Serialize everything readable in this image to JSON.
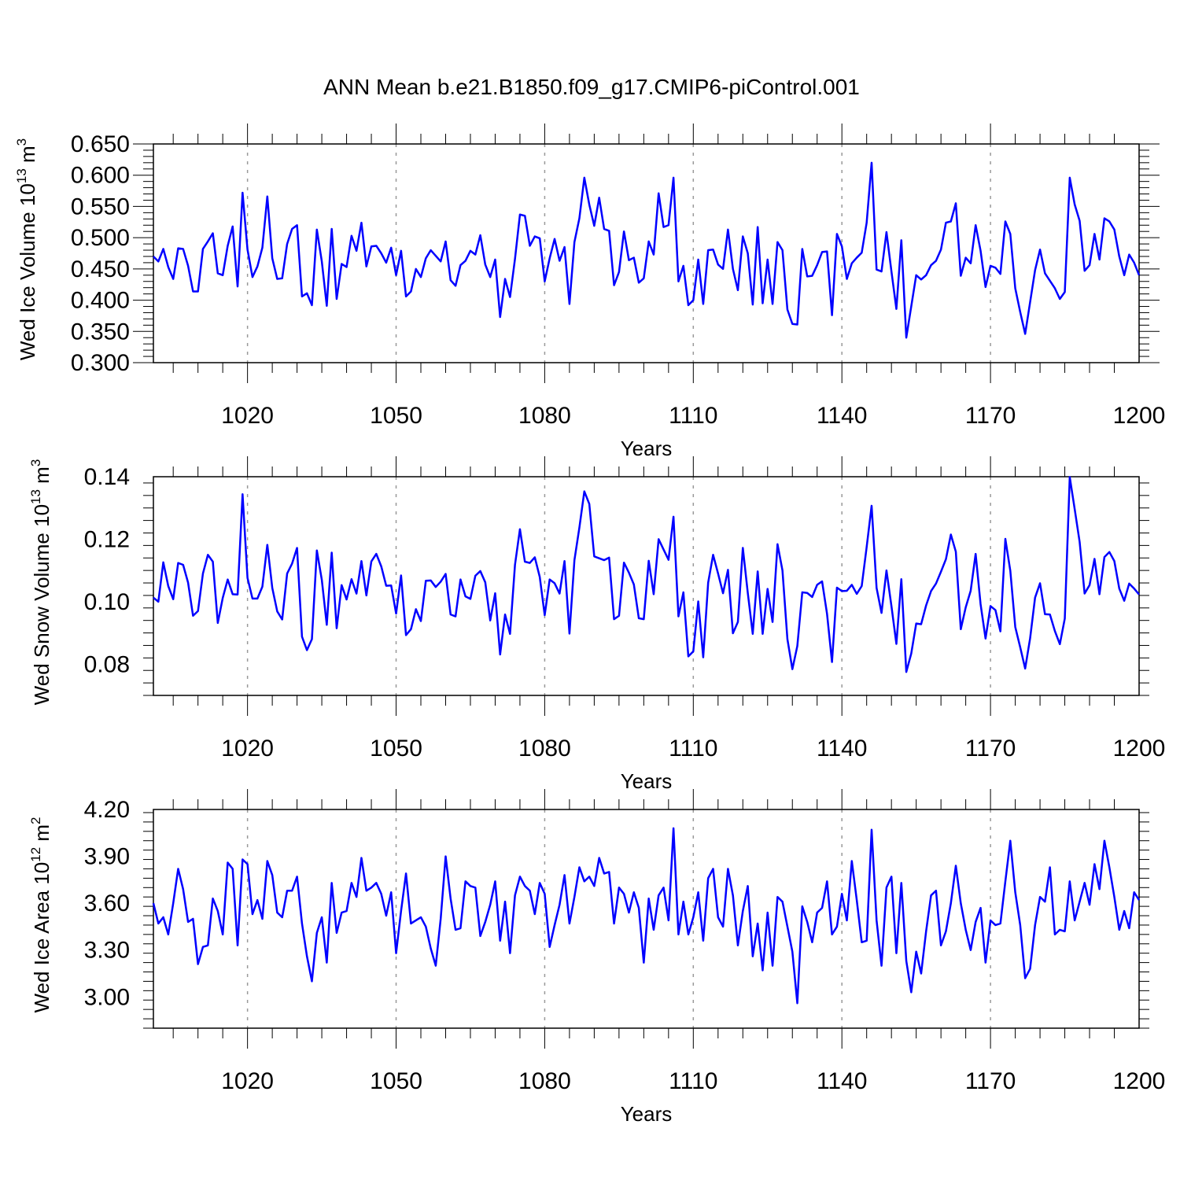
{
  "title": "ANN Mean b.e21.B1850.f09_g17.CMIP6-piControl.001",
  "colors": {
    "line": "#0000ff",
    "axis": "#000000",
    "grid": "#999999"
  },
  "chart_data": [
    {
      "type": "line",
      "name": "ice-volume",
      "ylabel_main": "Wed Ice Volume 10",
      "ylabel_exp": "13",
      "ylabel_unit": " m",
      "ylabel_unit_exp": "3",
      "xlabel": "Years",
      "xlim": [
        1001,
        1200
      ],
      "ylim": [
        0.3,
        0.65
      ],
      "yticks": [
        0.3,
        0.35,
        0.4,
        0.45,
        0.5,
        0.55,
        0.6,
        0.65
      ],
      "ytick_labels": [
        "0.300",
        "0.350",
        "0.400",
        "0.450",
        "0.500",
        "0.550",
        "0.600",
        "0.650"
      ],
      "xticks": [
        1020,
        1050,
        1080,
        1110,
        1140,
        1170,
        1200
      ],
      "xtick_labels": [
        "1020",
        "1050",
        "1080",
        "1110",
        "1140",
        "1170",
        "1200"
      ],
      "gridlines_x": [
        1020,
        1050,
        1080,
        1110,
        1140,
        1170
      ],
      "x_start": 1001,
      "series": [
        {
          "name": "Wed Ice Volume",
          "values": [
            0.47,
            0.462,
            0.482,
            0.453,
            0.434,
            0.483,
            0.482,
            0.455,
            0.414,
            0.414,
            0.482,
            0.494,
            0.507,
            0.443,
            0.44,
            0.487,
            0.518,
            0.422,
            0.572,
            0.481,
            0.437,
            0.454,
            0.484,
            0.566,
            0.467,
            0.434,
            0.435,
            0.49,
            0.514,
            0.52,
            0.406,
            0.411,
            0.392,
            0.513,
            0.462,
            0.391,
            0.514,
            0.402,
            0.458,
            0.453,
            0.503,
            0.479,
            0.524,
            0.454,
            0.486,
            0.487,
            0.475,
            0.46,
            0.484,
            0.44,
            0.479,
            0.406,
            0.414,
            0.45,
            0.437,
            0.467,
            0.48,
            0.471,
            0.462,
            0.494,
            0.432,
            0.423,
            0.456,
            0.463,
            0.479,
            0.473,
            0.504,
            0.457,
            0.437,
            0.465,
            0.373,
            0.434,
            0.405,
            0.466,
            0.537,
            0.535,
            0.487,
            0.502,
            0.499,
            0.43,
            0.467,
            0.498,
            0.463,
            0.485,
            0.394,
            0.493,
            0.531,
            0.596,
            0.553,
            0.519,
            0.564,
            0.514,
            0.511,
            0.424,
            0.445,
            0.51,
            0.464,
            0.468,
            0.428,
            0.435,
            0.494,
            0.473,
            0.571,
            0.517,
            0.52,
            0.596,
            0.43,
            0.455,
            0.392,
            0.4,
            0.465,
            0.394,
            0.48,
            0.481,
            0.457,
            0.45,
            0.513,
            0.45,
            0.416,
            0.502,
            0.475,
            0.393,
            0.517,
            0.395,
            0.465,
            0.394,
            0.493,
            0.48,
            0.385,
            0.362,
            0.361,
            0.482,
            0.438,
            0.439,
            0.456,
            0.477,
            0.478,
            0.376,
            0.506,
            0.486,
            0.434,
            0.459,
            0.468,
            0.476,
            0.524,
            0.62,
            0.449,
            0.446,
            0.509,
            0.446,
            0.386,
            0.496,
            0.34,
            0.39,
            0.44,
            0.433,
            0.44,
            0.456,
            0.463,
            0.481,
            0.524,
            0.526,
            0.555,
            0.439,
            0.468,
            0.459,
            0.52,
            0.479,
            0.421,
            0.455,
            0.452,
            0.442,
            0.526,
            0.506,
            0.419,
            0.381,
            0.346,
            0.397,
            0.448,
            0.481,
            0.443,
            0.431,
            0.419,
            0.402,
            0.413,
            0.596,
            0.553,
            0.527,
            0.447,
            0.456,
            0.506,
            0.465,
            0.531,
            0.526,
            0.513,
            0.47,
            0.44,
            0.473,
            0.46,
            0.44
          ]
        }
      ]
    },
    {
      "type": "line",
      "name": "snow-volume",
      "ylabel_main": "Wed Snow Volume 10",
      "ylabel_exp": "13",
      "ylabel_unit": " m",
      "ylabel_unit_exp": "3",
      "xlabel": "Years",
      "xlim": [
        1001,
        1200
      ],
      "ylim": [
        0.07,
        0.14
      ],
      "yticks": [
        0.08,
        0.1,
        0.12,
        0.14
      ],
      "ytick_labels": [
        "0.08",
        "0.10",
        "0.12",
        "0.14"
      ],
      "xticks": [
        1020,
        1050,
        1080,
        1110,
        1140,
        1170,
        1200
      ],
      "xtick_labels": [
        "1020",
        "1050",
        "1080",
        "1110",
        "1140",
        "1170",
        "1200"
      ],
      "gridlines_x": [
        1020,
        1050,
        1080,
        1110,
        1140,
        1170
      ],
      "x_start": 1001,
      "series": [
        {
          "name": "Wed Snow Volume",
          "values": [
            0.1013,
            0.1,
            0.1126,
            0.105,
            0.1008,
            0.1124,
            0.1118,
            0.1061,
            0.0955,
            0.097,
            0.109,
            0.115,
            0.1128,
            0.0932,
            0.1012,
            0.1071,
            0.1024,
            0.1023,
            0.1344,
            0.1076,
            0.101,
            0.101,
            0.1048,
            0.1182,
            0.1044,
            0.0969,
            0.0943,
            0.109,
            0.1122,
            0.1172,
            0.0888,
            0.0845,
            0.088,
            0.1164,
            0.107,
            0.0926,
            0.1157,
            0.0915,
            0.1053,
            0.1007,
            0.1072,
            0.1026,
            0.113,
            0.102,
            0.1129,
            0.1153,
            0.1113,
            0.1051,
            0.1052,
            0.0962,
            0.1084,
            0.0893,
            0.0912,
            0.0976,
            0.0938,
            0.1067,
            0.1068,
            0.1047,
            0.1064,
            0.1089,
            0.0959,
            0.0953,
            0.1071,
            0.1017,
            0.1009,
            0.1083,
            0.1098,
            0.1062,
            0.094,
            0.1027,
            0.0831,
            0.0959,
            0.0897,
            0.1118,
            0.1232,
            0.1128,
            0.1124,
            0.1142,
            0.1079,
            0.0957,
            0.1071,
            0.1059,
            0.1026,
            0.113,
            0.0898,
            0.1133,
            0.1237,
            0.1353,
            0.1313,
            0.1145,
            0.1139,
            0.1133,
            0.1141,
            0.0944,
            0.0955,
            0.1125,
            0.1093,
            0.1055,
            0.0947,
            0.0944,
            0.1131,
            0.1024,
            0.12,
            0.1167,
            0.1134,
            0.1272,
            0.0953,
            0.103,
            0.0825,
            0.0841,
            0.1001,
            0.0822,
            0.1061,
            0.115,
            0.109,
            0.1027,
            0.1102,
            0.0899,
            0.0935,
            0.1172,
            0.1028,
            0.0897,
            0.1097,
            0.0897,
            0.1041,
            0.0935,
            0.1184,
            0.11,
            0.088,
            0.0784,
            0.0858,
            0.103,
            0.1028,
            0.1015,
            0.1054,
            0.1065,
            0.0961,
            0.0807,
            0.1045,
            0.1034,
            0.1035,
            0.1054,
            0.1025,
            0.105,
            0.1175,
            0.1307,
            0.1044,
            0.0964,
            0.11,
            0.0986,
            0.0865,
            0.1072,
            0.0775,
            0.0834,
            0.093,
            0.0928,
            0.0988,
            0.1034,
            0.1058,
            0.1096,
            0.1136,
            0.1215,
            0.116,
            0.0912,
            0.0982,
            0.1035,
            0.1153,
            0.0992,
            0.0882,
            0.0986,
            0.0973,
            0.0905,
            0.1201,
            0.1099,
            0.0919,
            0.0854,
            0.0786,
            0.0883,
            0.1013,
            0.1059,
            0.096,
            0.0959,
            0.0906,
            0.0864,
            0.0946,
            0.1399,
            0.1296,
            0.1191,
            0.1026,
            0.1053,
            0.1137,
            0.1024,
            0.1143,
            0.1159,
            0.113,
            0.1042,
            0.1003,
            0.1058,
            0.1042,
            0.1023
          ]
        }
      ]
    },
    {
      "type": "line",
      "name": "ice-area",
      "ylabel_main": "Wed Ice Area 10",
      "ylabel_exp": "12",
      "ylabel_unit": " m",
      "ylabel_unit_exp": "2",
      "xlabel": "Years",
      "xlim": [
        1001,
        1200
      ],
      "ylim": [
        2.8,
        4.2
      ],
      "yticks": [
        3.0,
        3.3,
        3.6,
        3.9,
        4.2
      ],
      "ytick_labels": [
        "3.00",
        "3.30",
        "3.60",
        "3.90",
        "4.20"
      ],
      "xticks": [
        1020,
        1050,
        1080,
        1110,
        1140,
        1170,
        1200
      ],
      "xtick_labels": [
        "1020",
        "1050",
        "1080",
        "1110",
        "1140",
        "1170",
        "1200"
      ],
      "gridlines_x": [
        1020,
        1050,
        1080,
        1110,
        1140,
        1170
      ],
      "x_start": 1001,
      "series": [
        {
          "name": "Wed Ice Area",
          "values": [
            3.6,
            3.47,
            3.51,
            3.4,
            3.6,
            3.82,
            3.69,
            3.48,
            3.5,
            3.21,
            3.32,
            3.33,
            3.63,
            3.55,
            3.4,
            3.86,
            3.82,
            3.33,
            3.88,
            3.85,
            3.53,
            3.62,
            3.5,
            3.87,
            3.78,
            3.54,
            3.51,
            3.68,
            3.68,
            3.77,
            3.47,
            3.26,
            3.1,
            3.41,
            3.51,
            3.22,
            3.73,
            3.41,
            3.54,
            3.55,
            3.73,
            3.64,
            3.89,
            3.68,
            3.7,
            3.73,
            3.66,
            3.52,
            3.67,
            3.28,
            3.55,
            3.79,
            3.47,
            3.49,
            3.51,
            3.45,
            3.31,
            3.2,
            3.5,
            3.9,
            3.63,
            3.43,
            3.44,
            3.74,
            3.71,
            3.7,
            3.39,
            3.48,
            3.59,
            3.74,
            3.36,
            3.61,
            3.28,
            3.65,
            3.77,
            3.71,
            3.68,
            3.53,
            3.73,
            3.66,
            3.32,
            3.46,
            3.59,
            3.78,
            3.47,
            3.64,
            3.83,
            3.74,
            3.77,
            3.71,
            3.89,
            3.79,
            3.8,
            3.47,
            3.7,
            3.66,
            3.54,
            3.67,
            3.57,
            3.22,
            3.63,
            3.43,
            3.65,
            3.7,
            3.49,
            4.08,
            3.4,
            3.61,
            3.4,
            3.51,
            3.67,
            3.36,
            3.76,
            3.82,
            3.51,
            3.45,
            3.82,
            3.65,
            3.33,
            3.55,
            3.71,
            3.26,
            3.47,
            3.17,
            3.54,
            3.2,
            3.64,
            3.61,
            3.45,
            3.29,
            2.96,
            3.58,
            3.48,
            3.35,
            3.54,
            3.57,
            3.74,
            3.4,
            3.45,
            3.66,
            3.49,
            3.87,
            3.62,
            3.35,
            3.36,
            4.07,
            3.49,
            3.2,
            3.7,
            3.77,
            3.28,
            3.73,
            3.23,
            3.03,
            3.29,
            3.15,
            3.42,
            3.65,
            3.68,
            3.33,
            3.42,
            3.6,
            3.84,
            3.6,
            3.43,
            3.3,
            3.48,
            3.57,
            3.22,
            3.49,
            3.46,
            3.47,
            3.74,
            4.0,
            3.67,
            3.46,
            3.12,
            3.18,
            3.46,
            3.64,
            3.61,
            3.83,
            3.4,
            3.43,
            3.42,
            3.74,
            3.49,
            3.61,
            3.73,
            3.59,
            3.85,
            3.69,
            4.0,
            3.83,
            3.64,
            3.43,
            3.55,
            3.44,
            3.67,
            3.62
          ]
        }
      ]
    }
  ]
}
